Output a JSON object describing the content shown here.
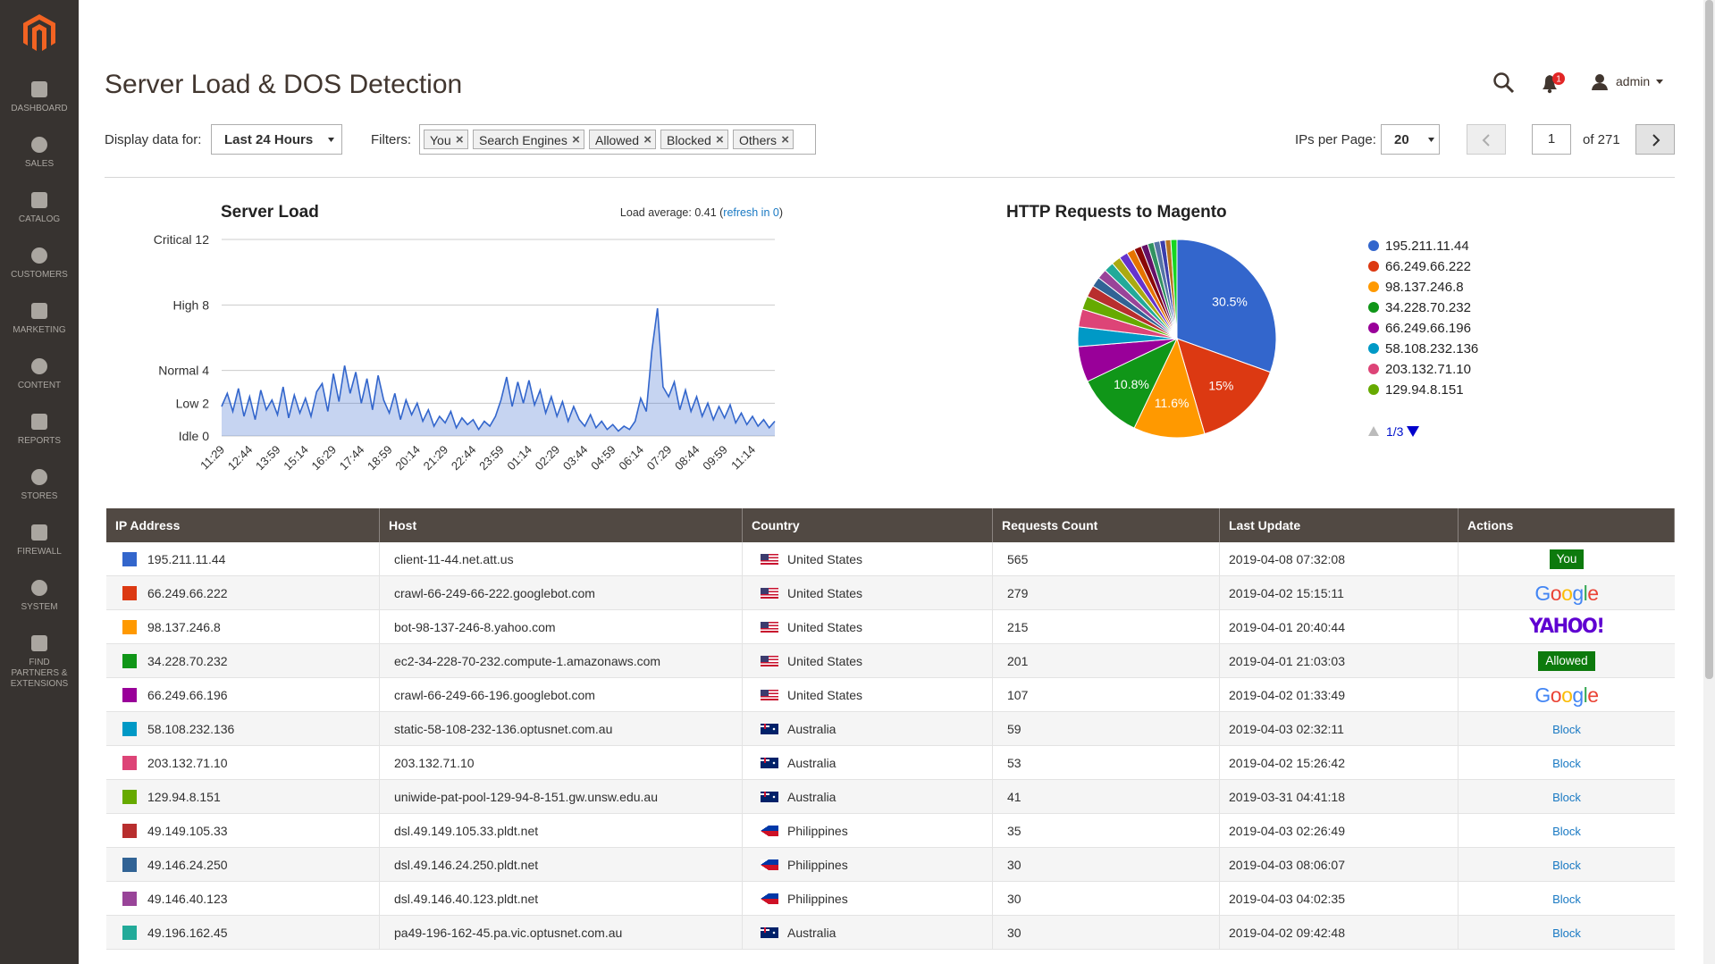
{
  "sidebar": {
    "items": [
      "DASHBOARD",
      "SALES",
      "CATALOG",
      "CUSTOMERS",
      "MARKETING",
      "CONTENT",
      "REPORTS",
      "STORES",
      "FIREWALL",
      "SYSTEM",
      "FIND PARTNERS & EXTENSIONS"
    ]
  },
  "header": {
    "title": "Server Load & DOS Detection",
    "user": "admin",
    "notifications": 1
  },
  "filters": {
    "display_label": "Display data for:",
    "range": "Last 24 Hours",
    "filters_label": "Filters:",
    "chips": [
      "You",
      "Search Engines",
      "Allowed",
      "Blocked",
      "Others"
    ]
  },
  "pagination": {
    "label": "IPs per Page:",
    "per_page": 20,
    "page": 1,
    "of": "of 271"
  },
  "chart_data": [
    {
      "type": "line",
      "title": "Server Load",
      "load_prefix": "Load average: 0.41 (",
      "refresh": "refresh in 0",
      "load_suffix": ")",
      "categories": [
        "11:29",
        null,
        null,
        null,
        null,
        "12:44",
        null,
        null,
        null,
        null,
        "13:59",
        null,
        null,
        null,
        null,
        "15:14",
        null,
        null,
        null,
        null,
        "16:29",
        null,
        null,
        null,
        null,
        "17:44",
        null,
        null,
        null,
        null,
        "18:59",
        null,
        null,
        null,
        null,
        "20:14",
        null,
        null,
        null,
        null,
        "21:29",
        null,
        null,
        null,
        null,
        "22:44",
        null,
        null,
        null,
        null,
        "23:59",
        null,
        null,
        null,
        null,
        "01:14",
        null,
        null,
        null,
        null,
        "02:29",
        null,
        null,
        null,
        null,
        "03:44",
        null,
        null,
        null,
        null,
        "04:59",
        null,
        null,
        null,
        null,
        "06:14",
        null,
        null,
        null,
        null,
        "07:29",
        null,
        null,
        null,
        null,
        "08:44",
        null,
        null,
        null,
        null,
        "09:59",
        null,
        null,
        null,
        null,
        "11:14",
        null,
        null,
        null,
        null
      ],
      "values": [
        1.8,
        2.6,
        1.5,
        2.9,
        1.2,
        2.4,
        1.0,
        2.8,
        1.6,
        2.2,
        1.3,
        3.0,
        1.1,
        2.5,
        1.4,
        2.3,
        1.2,
        2.7,
        3.2,
        1.5,
        3.8,
        2.1,
        4.3,
        2.6,
        3.9,
        2.0,
        3.5,
        1.6,
        3.7,
        2.2,
        1.4,
        2.6,
        1.0,
        2.2,
        1.3,
        2.0,
        0.9,
        1.6,
        0.6,
        1.2,
        0.8,
        1.5,
        0.5,
        1.1,
        0.7,
        1.0,
        0.4,
        0.9,
        0.6,
        1.2,
        2.2,
        3.6,
        1.8,
        3.3,
        2.0,
        3.4,
        1.9,
        2.8,
        1.4,
        2.4,
        1.2,
        2.1,
        0.9,
        1.8,
        1.0,
        0.6,
        1.3,
        0.5,
        0.9,
        0.4,
        0.7,
        0.3,
        0.6,
        0.4,
        0.9,
        2.3,
        1.5,
        5.2,
        7.8,
        3.0,
        2.4,
        3.3,
        1.6,
        2.8,
        1.5,
        2.4,
        1.2,
        2.0,
        1.0,
        1.8,
        1.1,
        1.9,
        0.8,
        1.4,
        0.7,
        1.2,
        0.6,
        1.0,
        0.5,
        0.9
      ],
      "color": "#3366cc",
      "fill": true,
      "ylim": [
        0,
        12
      ],
      "yticks": [
        {
          "value": 0,
          "label": "Idle 0"
        },
        {
          "value": 2,
          "label": "Low 2"
        },
        {
          "value": 4,
          "label": "Normal 4"
        },
        {
          "value": 8,
          "label": "High 8"
        },
        {
          "value": 12,
          "label": "Critical 12"
        }
      ],
      "grid": true
    },
    {
      "type": "pie",
      "title": "HTTP Requests to Magento",
      "categories": [
        "195.211.11.44",
        "66.249.66.222",
        "98.137.246.8",
        "34.228.70.232",
        "66.249.66.196",
        "58.108.232.136",
        "203.132.71.10",
        "129.94.8.151",
        null,
        null,
        null,
        null,
        null,
        null,
        null,
        null,
        null,
        null,
        null,
        null,
        null,
        null
      ],
      "values": [
        30.5,
        15,
        11.6,
        10.8,
        5.8,
        3.2,
        2.9,
        2.2,
        1.9,
        1.6,
        1.6,
        1.6,
        1.5,
        1.4,
        1.3,
        1.2,
        1.1,
        1.0,
        1.0,
        0.9,
        0.9,
        1.0
      ],
      "value_labels": [
        "30.5%",
        "15%",
        "11.6%",
        "10.8%",
        null,
        null,
        null,
        null,
        null,
        null,
        null,
        null,
        null,
        null,
        null,
        null,
        null,
        null,
        null,
        null,
        null,
        null
      ],
      "colors": [
        "#3366cc",
        "#dc3912",
        "#ff9900",
        "#109618",
        "#990099",
        "#0099c6",
        "#dd4477",
        "#66aa00",
        "#b82e2e",
        "#316395",
        "#994499",
        "#22aa99",
        "#aaaa11",
        "#6633cc",
        "#e67300",
        "#8b0707",
        "#651067",
        "#329262",
        "#5574a6",
        "#3b3eac",
        "#b77322",
        "#16d620"
      ],
      "legend": "right",
      "legend_page": "1/3"
    }
  ],
  "table": {
    "columns": [
      "IP Address",
      "Host",
      "Country",
      "Requests Count",
      "Last Update",
      "Actions"
    ],
    "rows": [
      {
        "color": "#3366cc",
        "ip": "195.211.11.44",
        "host": "client-11-44.net.att.us",
        "flag": "us",
        "country": "United States",
        "requests": 565,
        "updated": "2019-04-08 07:32:08",
        "action": "You",
        "action_style": "badge"
      },
      {
        "color": "#dc3912",
        "ip": "66.249.66.222",
        "host": "crawl-66-249-66-222.googlebot.com",
        "flag": "us",
        "country": "United States",
        "requests": 279,
        "updated": "2019-04-02 15:15:11",
        "action": "Google",
        "action_style": "google"
      },
      {
        "color": "#ff9900",
        "ip": "98.137.246.8",
        "host": "bot-98-137-246-8.yahoo.com",
        "flag": "us",
        "country": "United States",
        "requests": 215,
        "updated": "2019-04-01 20:40:44",
        "action": "YAHOO!",
        "action_style": "yahoo"
      },
      {
        "color": "#109618",
        "ip": "34.228.70.232",
        "host": "ec2-34-228-70-232.compute-1.amazonaws.com",
        "flag": "us",
        "country": "United States",
        "requests": 201,
        "updated": "2019-04-01 21:03:03",
        "action": "Allowed",
        "action_style": "badge"
      },
      {
        "color": "#990099",
        "ip": "66.249.66.196",
        "host": "crawl-66-249-66-196.googlebot.com",
        "flag": "us",
        "country": "United States",
        "requests": 107,
        "updated": "2019-04-02 01:33:49",
        "action": "Google",
        "action_style": "google"
      },
      {
        "color": "#0099c6",
        "ip": "58.108.232.136",
        "host": "static-58-108-232-136.optusnet.com.au",
        "flag": "au",
        "country": "Australia",
        "requests": 59,
        "updated": "2019-04-03 02:32:11",
        "action": "Block",
        "action_style": "link"
      },
      {
        "color": "#dd4477",
        "ip": "203.132.71.10",
        "host": "203.132.71.10",
        "flag": "au",
        "country": "Australia",
        "requests": 53,
        "updated": "2019-04-02 15:26:42",
        "action": "Block",
        "action_style": "link"
      },
      {
        "color": "#66aa00",
        "ip": "129.94.8.151",
        "host": "uniwide-pat-pool-129-94-8-151.gw.unsw.edu.au",
        "flag": "au",
        "country": "Australia",
        "requests": 41,
        "updated": "2019-03-31 04:41:18",
        "action": "Block",
        "action_style": "link"
      },
      {
        "color": "#b82e2e",
        "ip": "49.149.105.33",
        "host": "dsl.49.149.105.33.pldt.net",
        "flag": "ph",
        "country": "Philippines",
        "requests": 35,
        "updated": "2019-04-03 02:26:49",
        "action": "Block",
        "action_style": "link"
      },
      {
        "color": "#316395",
        "ip": "49.146.24.250",
        "host": "dsl.49.146.24.250.pldt.net",
        "flag": "ph",
        "country": "Philippines",
        "requests": 30,
        "updated": "2019-04-03 08:06:07",
        "action": "Block",
        "action_style": "link"
      },
      {
        "color": "#994499",
        "ip": "49.146.40.123",
        "host": "dsl.49.146.40.123.pldt.net",
        "flag": "ph",
        "country": "Philippines",
        "requests": 30,
        "updated": "2019-04-03 04:02:35",
        "action": "Block",
        "action_style": "link"
      },
      {
        "color": "#22aa99",
        "ip": "49.196.162.45",
        "host": "pa49-196-162-45.pa.vic.optusnet.com.au",
        "flag": "au",
        "country": "Australia",
        "requests": 30,
        "updated": "2019-04-02 09:42:48",
        "action": "Block",
        "action_style": "link"
      }
    ]
  }
}
